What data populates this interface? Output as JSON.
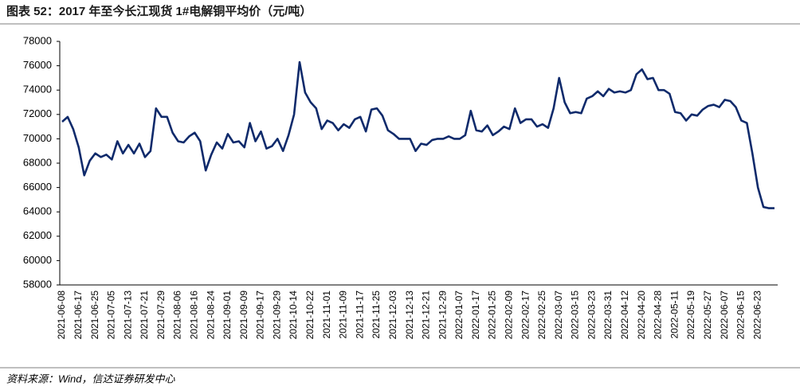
{
  "chart_data": {
    "type": "line",
    "title": "图表 52：2017 年至今长江现货 1#电解铜平均价（元/吨）",
    "source": "资料来源：Wind，信达证券研发中心",
    "categories": [
      "2021-06-08",
      null,
      null,
      "2021-06-17",
      null,
      null,
      "2021-06-25",
      null,
      null,
      "2021-07-05",
      null,
      null,
      "2021-07-13",
      null,
      null,
      "2021-07-21",
      null,
      null,
      "2021-07-29",
      null,
      null,
      "2021-08-06",
      null,
      null,
      "2021-08-16",
      null,
      null,
      "2021-08-24",
      null,
      null,
      "2021-09-01",
      null,
      null,
      "2021-09-09",
      null,
      null,
      "2021-09-17",
      null,
      null,
      "2021-09-29",
      null,
      null,
      "2021-10-14",
      null,
      null,
      "2021-10-22",
      null,
      null,
      "2021-11-01",
      null,
      null,
      "2021-11-09",
      null,
      null,
      "2021-11-17",
      null,
      null,
      "2021-11-25",
      null,
      null,
      "2021-12-03",
      null,
      null,
      "2021-12-13",
      null,
      null,
      "2021-12-21",
      null,
      null,
      "2021-12-29",
      null,
      null,
      "2022-01-07",
      null,
      null,
      "2022-01-17",
      null,
      null,
      "2022-01-25",
      null,
      null,
      "2022-02-09",
      null,
      null,
      "2022-02-17",
      null,
      null,
      "2022-02-25",
      null,
      null,
      "2022-03-07",
      null,
      null,
      "2022-03-15",
      null,
      null,
      "2022-03-23",
      null,
      null,
      "2022-03-31",
      null,
      null,
      "2022-04-12",
      null,
      null,
      "2022-04-20",
      null,
      null,
      "2022-04-28",
      null,
      null,
      "2022-05-11",
      null,
      null,
      "2022-05-19",
      null,
      null,
      "2022-05-27",
      null,
      null,
      "2022-06-07",
      null,
      null,
      "2022-06-15",
      null,
      null,
      "2022-06-23",
      null,
      null,
      null
    ],
    "values": [
      71400,
      71800,
      70800,
      69300,
      67000,
      68200,
      68800,
      68500,
      68700,
      68300,
      69800,
      68800,
      69500,
      68800,
      69600,
      68500,
      69000,
      72500,
      71800,
      71800,
      70500,
      69800,
      69700,
      70200,
      70500,
      69800,
      67400,
      68700,
      69700,
      69200,
      70400,
      69700,
      69800,
      69300,
      71300,
      69800,
      70600,
      69200,
      69400,
      70000,
      69000,
      70300,
      72000,
      76300,
      73800,
      73000,
      72500,
      70800,
      71500,
      71300,
      70700,
      71200,
      70900,
      71600,
      71800,
      70600,
      72400,
      72500,
      71900,
      70700,
      70400,
      70000,
      70000,
      70000,
      69000,
      69600,
      69500,
      69900,
      70000,
      70000,
      70200,
      70000,
      70000,
      70300,
      72300,
      70700,
      70600,
      71100,
      70300,
      70600,
      71000,
      70800,
      72500,
      71300,
      71600,
      71600,
      71000,
      71200,
      70900,
      72500,
      75000,
      73000,
      72100,
      72200,
      72100,
      73300,
      73500,
      73900,
      73500,
      74100,
      73800,
      73900,
      73800,
      74000,
      75300,
      75700,
      74900,
      75000,
      74000,
      74000,
      73700,
      72200,
      72100,
      71500,
      72000,
      71900,
      72400,
      72700,
      72800,
      72600,
      73200,
      73100,
      72600,
      71500,
      71300,
      68800,
      66000,
      64400,
      64300,
      64300
    ],
    "color": "#0f2a6b",
    "ylim": [
      58000,
      78000
    ],
    "yticks": [
      58000,
      60000,
      62000,
      64000,
      66000,
      68000,
      70000,
      72000,
      74000,
      76000,
      78000
    ],
    "grid": false
  }
}
